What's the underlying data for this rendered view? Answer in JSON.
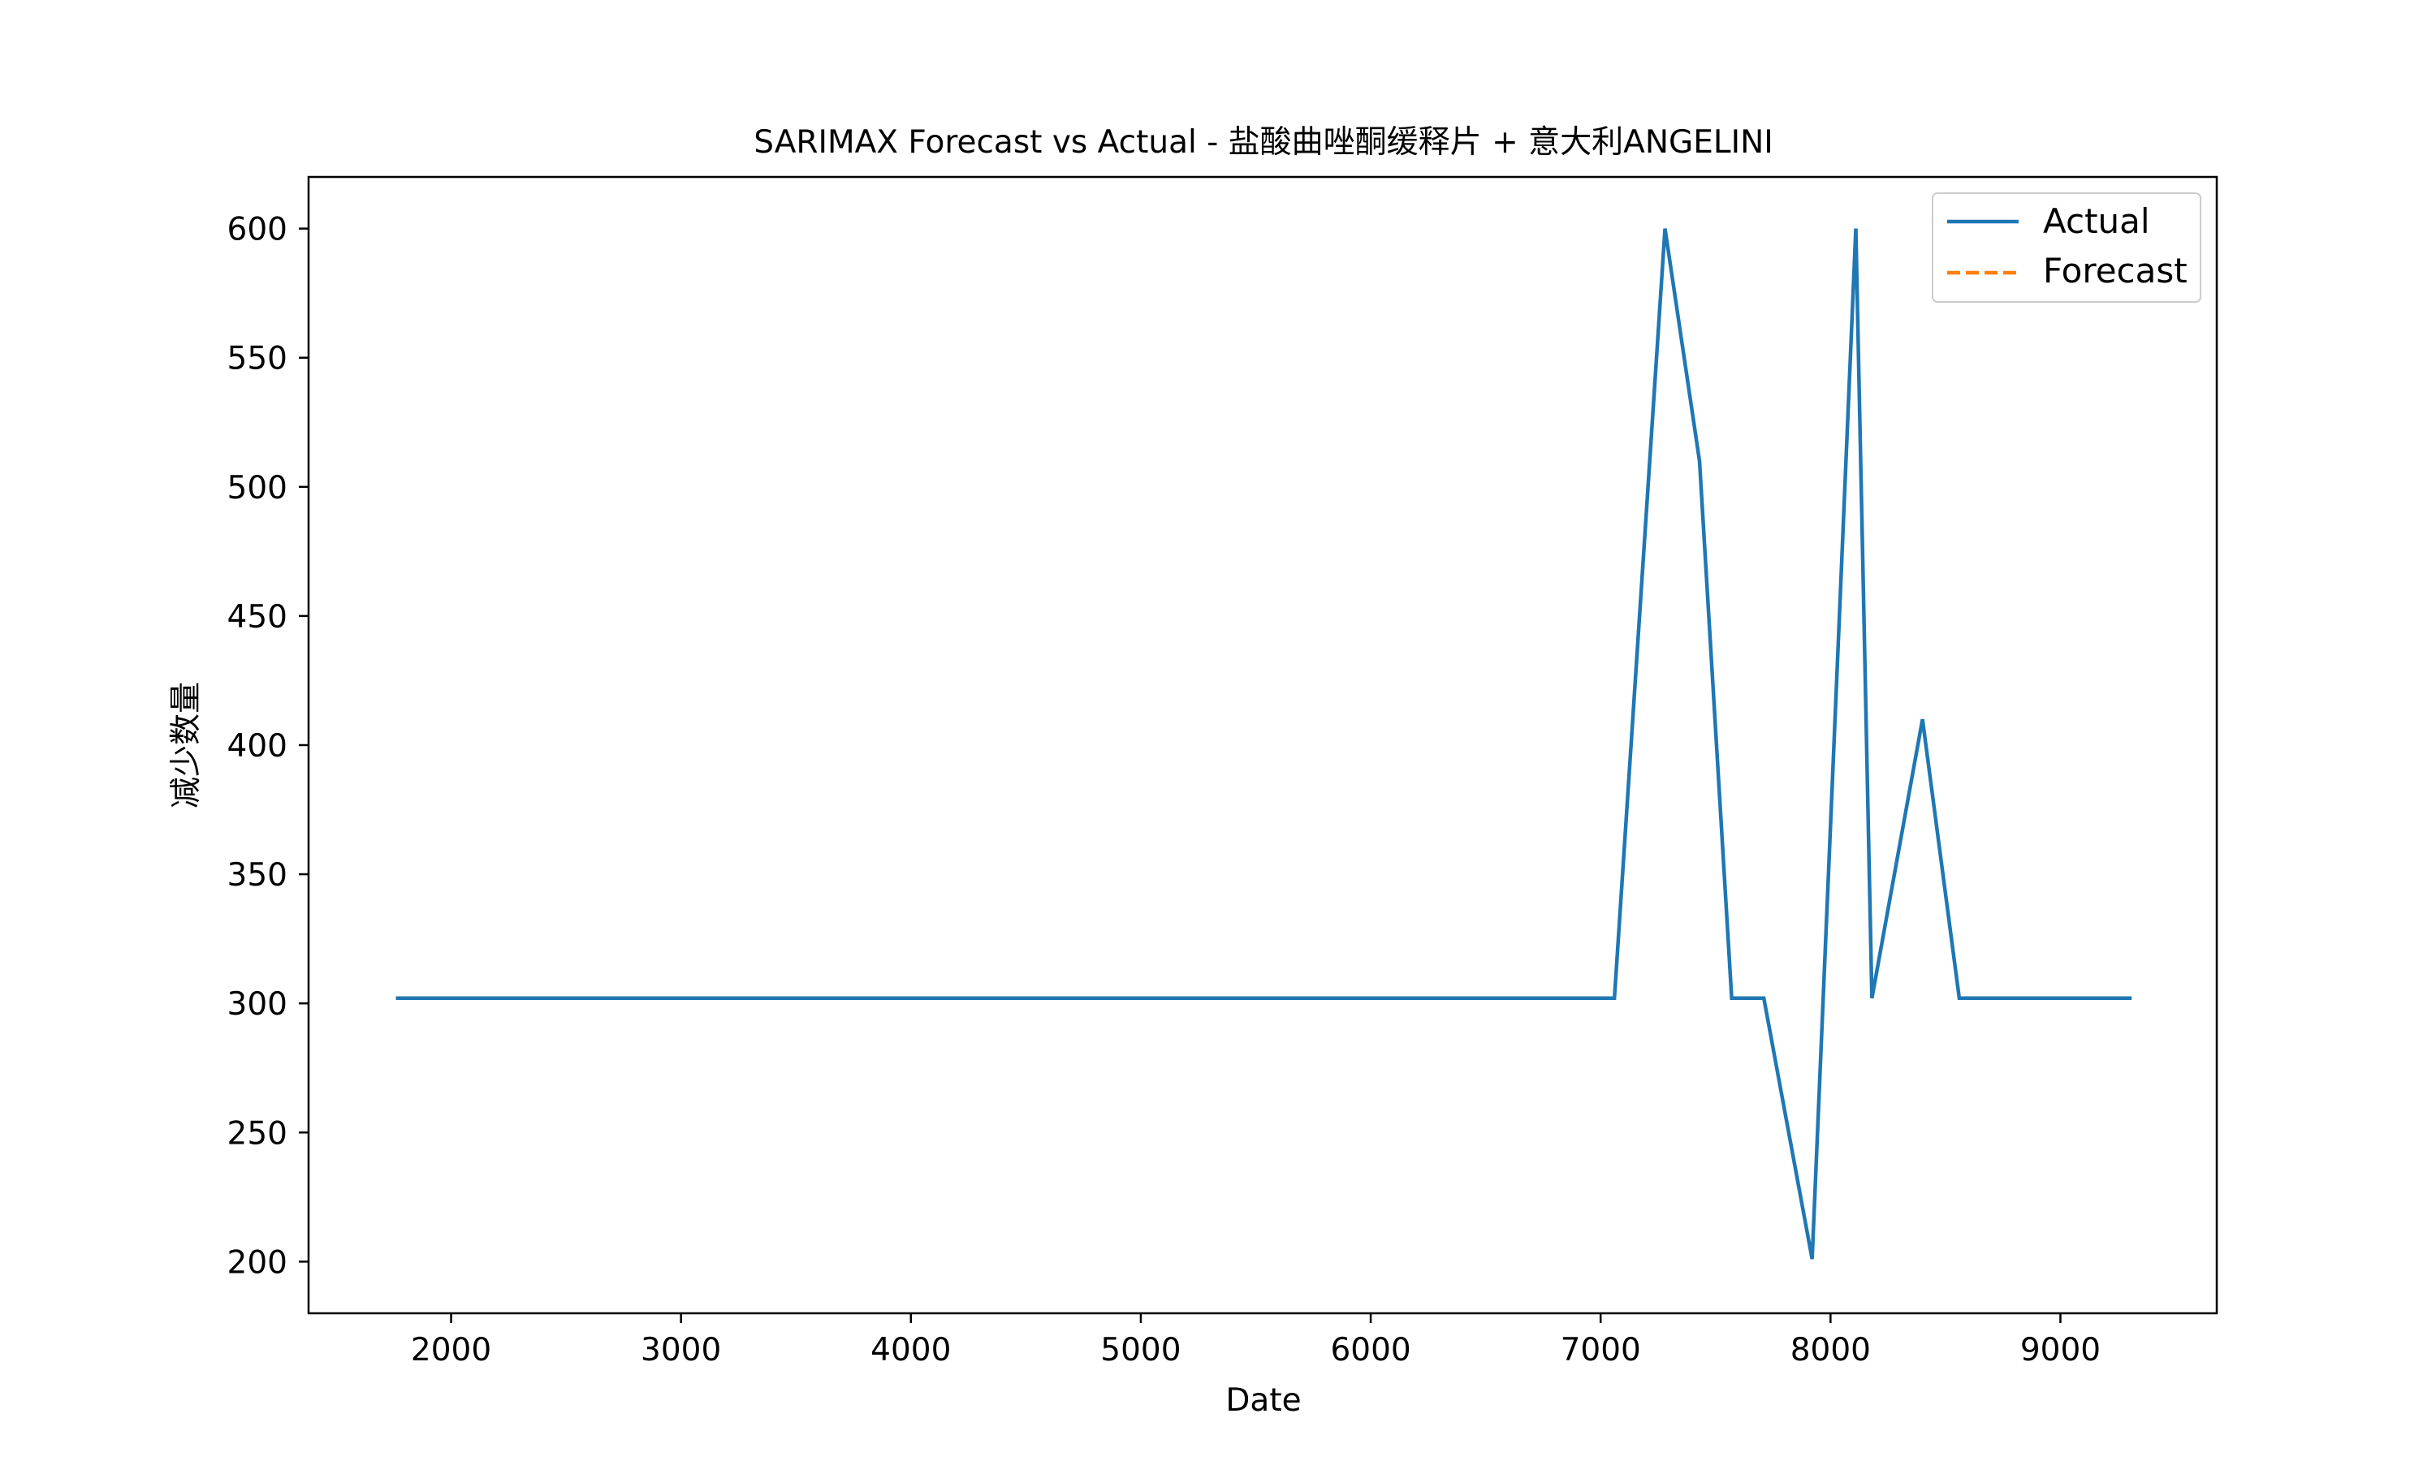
{
  "chart_data": {
    "type": "line",
    "title": "SARIMAX Forecast vs Actual - 盐酸曲唑酮缓释片 + 意大利ANGELINI",
    "xlabel": "Date",
    "ylabel": "减少数量",
    "xlim": [
      1380,
      9680
    ],
    "ylim": [
      180,
      620
    ],
    "xticks": [
      2000,
      3000,
      4000,
      5000,
      6000,
      7000,
      8000,
      9000
    ],
    "yticks": [
      200,
      250,
      300,
      350,
      400,
      450,
      500,
      550,
      600
    ],
    "grid": false,
    "legend_position": "upper right",
    "series": [
      {
        "name": "Actual",
        "color": "#1f77b4",
        "linestyle": "solid",
        "points": [
          [
            1760,
            302
          ],
          [
            7060,
            302
          ],
          [
            7280,
            600
          ],
          [
            7430,
            510
          ],
          [
            7570,
            302
          ],
          [
            7710,
            302
          ],
          [
            7920,
            201
          ],
          [
            8110,
            600
          ],
          [
            8180,
            302
          ],
          [
            8400,
            410
          ],
          [
            8560,
            302
          ],
          [
            9310,
            302
          ]
        ]
      },
      {
        "name": "Forecast",
        "color": "#ff7f0e",
        "linestyle": "dashed",
        "points": []
      }
    ]
  }
}
